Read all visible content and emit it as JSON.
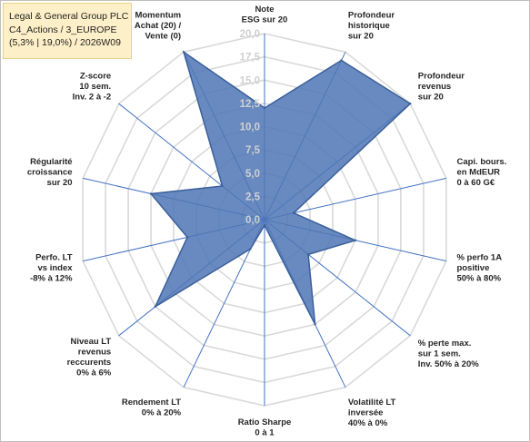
{
  "title_lines": [
    "Legal & General Group PLC",
    "C4_Actions / 3_EUROPE",
    "(5,3% | 19,0%) / 2026W09"
  ],
  "chart_data": {
    "type": "radar",
    "rmin": 0,
    "rmax": 20,
    "ticks": [
      "0,0",
      "2,5",
      "5,0",
      "7,5",
      "10,0",
      "12,5",
      "15,0",
      "17,5",
      "20,0"
    ],
    "tick_values": [
      0,
      2.5,
      5,
      7.5,
      10,
      12.5,
      15,
      17.5,
      20
    ],
    "grid": true,
    "fill_color": "#4f76b5",
    "line_color": "#3a5f9a",
    "grid_color": "#d9d9d9",
    "axis_color": "#4472c4",
    "axes": [
      {
        "label": [
          "Note",
          "ESG sur 20"
        ],
        "value": 12
      },
      {
        "label": [
          "Profondeur",
          "historique",
          "sur 20"
        ],
        "value": 19
      },
      {
        "label": [
          "Profondeur",
          "revenus",
          "sur 20"
        ],
        "value": 20
      },
      {
        "label": [
          "Capi. bours.",
          "en MdEUR",
          "0 à 60 G€"
        ],
        "value": 3.2
      },
      {
        "label": [
          "% perfo 1A",
          "positive",
          "50% à 80%"
        ],
        "value": 10
      },
      {
        "label": [
          "% perte max.",
          "sur 1 sem.",
          "Inv. 50% à 20%"
        ],
        "value": 6
      },
      {
        "label": [
          "Volatilité LT",
          "inversée",
          "40% à 0%"
        ],
        "value": 12.5
      },
      {
        "label": [
          "Ratio Sharpe",
          "0 à 1"
        ],
        "value": 0.6
      },
      {
        "label": [
          "Rendement LT",
          "0% à 20%"
        ],
        "value": 3.5
      },
      {
        "label": [
          "Niveau LT",
          "revenus",
          "reccurents",
          "0% à 6%"
        ],
        "value": 15
      },
      {
        "label": [
          "Perfo. LT",
          "vs index",
          "-8% à 12%"
        ],
        "value": 8.5
      },
      {
        "label": [
          "Régularité",
          "croissance",
          "sur 20"
        ],
        "value": 12.5
      },
      {
        "label": [
          "Z-score",
          "10 sem.",
          "Inv. 2 à -2"
        ],
        "value": 5.8
      },
      {
        "label": [
          "Momentum",
          "Achat (20) /",
          "Vente (0)"
        ],
        "value": 20
      }
    ]
  }
}
